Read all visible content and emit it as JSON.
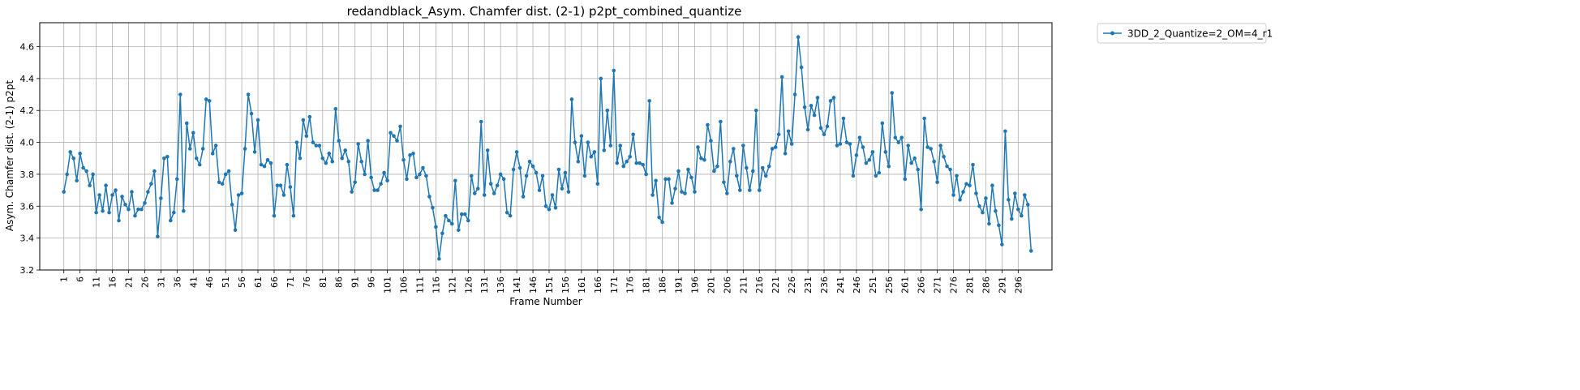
{
  "chart_data": {
    "type": "line",
    "title": "redandblack_Asym. Chamfer dist. (2-1) p2pt_combined_quantize",
    "xlabel": "Frame Number",
    "ylabel": "Asym. Chamfer dist. (2-1) p2pt",
    "xlim": [
      -6.45,
      306.45
    ],
    "ylim": [
      3.2,
      4.75
    ],
    "x_ticks": [
      1,
      6,
      11,
      16,
      21,
      26,
      31,
      36,
      41,
      46,
      51,
      56,
      61,
      66,
      71,
      76,
      81,
      86,
      91,
      96,
      101,
      106,
      111,
      116,
      121,
      126,
      131,
      136,
      141,
      146,
      151,
      156,
      161,
      166,
      171,
      176,
      181,
      186,
      191,
      196,
      201,
      206,
      211,
      216,
      221,
      226,
      231,
      236,
      241,
      246,
      251,
      256,
      261,
      266,
      271,
      276,
      281,
      286,
      291,
      296
    ],
    "y_ticks": [
      3.2,
      3.4,
      3.6,
      3.8,
      4.0,
      4.2,
      4.4,
      4.6
    ],
    "y_tick_labels": [
      "3.2",
      "3.4",
      "3.6",
      "3.8",
      "4.0",
      "4.2",
      "4.4",
      "4.6"
    ],
    "grid": true,
    "legend_position": "outside-top-right",
    "series": [
      {
        "name": "3DD_2_Quantize=2_OM=4_r1",
        "color": "#1f77b4",
        "marker": "circle",
        "x_start": 1,
        "values": [
          3.69,
          3.8,
          3.94,
          3.9,
          3.76,
          3.93,
          3.84,
          3.82,
          3.73,
          3.8,
          3.56,
          3.67,
          3.57,
          3.73,
          3.56,
          3.67,
          3.7,
          3.51,
          3.66,
          3.61,
          3.58,
          3.69,
          3.54,
          3.58,
          3.58,
          3.62,
          3.69,
          3.74,
          3.82,
          3.41,
          3.65,
          3.9,
          3.91,
          3.51,
          3.56,
          3.77,
          4.3,
          3.57,
          4.12,
          3.96,
          4.06,
          3.9,
          3.86,
          3.96,
          4.27,
          4.26,
          3.93,
          3.98,
          3.75,
          3.74,
          3.8,
          3.82,
          3.61,
          3.45,
          3.67,
          3.68,
          3.96,
          4.3,
          4.18,
          3.94,
          4.14,
          3.86,
          3.85,
          3.89,
          3.87,
          3.54,
          3.73,
          3.73,
          3.67,
          3.86,
          3.72,
          3.54,
          4.0,
          3.9,
          4.14,
          4.04,
          4.16,
          4.0,
          3.98,
          3.98,
          3.9,
          3.87,
          3.93,
          3.88,
          4.21,
          4.01,
          3.9,
          3.95,
          3.88,
          3.69,
          3.75,
          3.99,
          3.88,
          3.8,
          4.01,
          3.78,
          3.7,
          3.7,
          3.74,
          3.81,
          3.76,
          4.06,
          4.04,
          4.01,
          4.1,
          3.89,
          3.77,
          3.92,
          3.93,
          3.78,
          3.8,
          3.84,
          3.79,
          3.66,
          3.59,
          3.47,
          3.27,
          3.43,
          3.54,
          3.51,
          3.49,
          3.76,
          3.45,
          3.55,
          3.55,
          3.51,
          3.79,
          3.68,
          3.71,
          4.13,
          3.67,
          3.95,
          3.74,
          3.68,
          3.73,
          3.8,
          3.77,
          3.56,
          3.54,
          3.83,
          3.94,
          3.84,
          3.66,
          3.79,
          3.88,
          3.85,
          3.81,
          3.7,
          3.79,
          3.6,
          3.58,
          3.67,
          3.59,
          3.83,
          3.71,
          3.81,
          3.69,
          4.27,
          4.0,
          3.88,
          4.04,
          3.79,
          4.0,
          3.91,
          3.94,
          3.74,
          4.4,
          3.95,
          4.2,
          3.98,
          4.45,
          3.87,
          3.98,
          3.85,
          3.88,
          3.91,
          4.05,
          3.87,
          3.87,
          3.86,
          3.8,
          4.26,
          3.67,
          3.76,
          3.53,
          3.5,
          3.77,
          3.77,
          3.62,
          3.71,
          3.82,
          3.69,
          3.68,
          3.83,
          3.78,
          3.69,
          3.97,
          3.9,
          3.89,
          4.11,
          4.01,
          3.82,
          3.85,
          4.13,
          3.75,
          3.68,
          3.88,
          3.96,
          3.79,
          3.7,
          3.98,
          3.84,
          3.7,
          3.82,
          4.2,
          3.7,
          3.84,
          3.79,
          3.85,
          3.96,
          3.97,
          4.05,
          4.41,
          3.93,
          4.07,
          3.99,
          4.3,
          4.66,
          4.47,
          4.22,
          4.08,
          4.23,
          4.17,
          4.28,
          4.09,
          4.05,
          4.1,
          4.26,
          4.28,
          3.98,
          3.99,
          4.15,
          4.0,
          3.99,
          3.79,
          3.92,
          4.03,
          3.97,
          3.87,
          3.89,
          3.94,
          3.79,
          3.81,
          4.12,
          3.94,
          3.85,
          4.31,
          4.03,
          4.0,
          4.03,
          3.77,
          3.98,
          3.87,
          3.9,
          3.83,
          3.58,
          4.15,
          3.97,
          3.96,
          3.88,
          3.75,
          3.98,
          3.91,
          3.85,
          3.83,
          3.67,
          3.79,
          3.64,
          3.69,
          3.74,
          3.73,
          3.86,
          3.68,
          3.6,
          3.56,
          3.65,
          3.49,
          3.73,
          3.57,
          3.48,
          3.36,
          4.07,
          3.64,
          3.52,
          3.68,
          3.58,
          3.54,
          3.67,
          3.61,
          3.32
        ]
      }
    ]
  }
}
